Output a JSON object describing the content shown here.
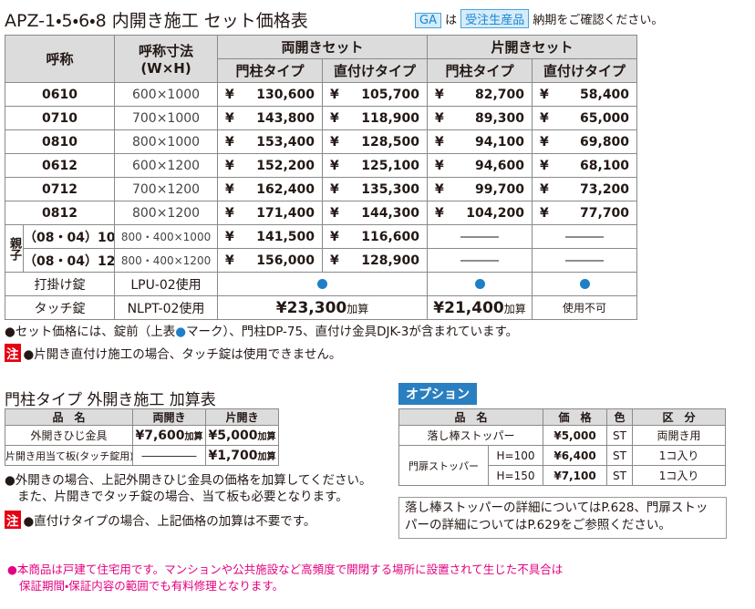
{
  "header": {
    "title": "APZ-1・5・6・8 内開き施工 セット価格表",
    "badge_ga": "GA",
    "text_ha": "は",
    "badge_order": "受注生産品",
    "text_note": "納期をご確認ください。"
  },
  "main_table": {
    "col_name": "呼称",
    "col_size": [
      "呼称寸法",
      "(W×H)"
    ],
    "group_double": "両開きセット",
    "group_single": "片開きセット",
    "sub_headers": [
      "門柱タイプ",
      "直付けタイプ",
      "門柱タイプ",
      "直付けタイプ"
    ],
    "currency": "¥",
    "rows": [
      {
        "name": "0610",
        "size": "600×1000",
        "prices": [
          "130,600",
          "105,700",
          "82,700",
          "58,400"
        ]
      },
      {
        "name": "0710",
        "size": "700×1000",
        "prices": [
          "143,800",
          "118,900",
          "89,300",
          "65,000"
        ]
      },
      {
        "name": "0810",
        "size": "800×1000",
        "prices": [
          "153,400",
          "128,500",
          "94,100",
          "69,800"
        ]
      },
      {
        "name": "0612",
        "size": "600×1200",
        "prices": [
          "152,200",
          "125,100",
          "94,600",
          "68,100"
        ]
      },
      {
        "name": "0712",
        "size": "700×1200",
        "prices": [
          "162,400",
          "135,300",
          "99,700",
          "73,200"
        ]
      },
      {
        "name": "0812",
        "size": "800×1200",
        "prices": [
          "171,400",
          "144,300",
          "104,200",
          "77,700"
        ]
      }
    ],
    "oyako": {
      "label": "親子",
      "rows": [
        {
          "name": "（08・04）10",
          "size": "800・400×1000",
          "prices": [
            "141,500",
            "116,600"
          ],
          "single": [
            "―――",
            "―――"
          ]
        },
        {
          "name": "（08・04）12",
          "size": "800・400×1200",
          "prices": [
            "156,000",
            "128,900"
          ],
          "single": [
            "―――",
            "―――"
          ]
        }
      ]
    },
    "lock": {
      "name": "打掛け錠",
      "model": "LPU-02使用"
    },
    "touch": {
      "name": "タッチ錠",
      "model": "NLPT-02使用",
      "double_price": "¥23,300",
      "double_suffix": "加算",
      "single_price": "¥21,400",
      "single_suffix": "加算",
      "single_door": "使用不可"
    }
  },
  "notes": {
    "note1": [
      "●セット価格には、錠前（上表",
      "●",
      "マーク）、門柱DP-75、直付け金具DJK-3が含まれています。"
    ],
    "caution_badge": "注",
    "note2": "●片開き直付け施工の場合、タッチ錠は使用できません。"
  },
  "outswing": {
    "title": "門柱タイプ 外開き施工 加算表",
    "headers": [
      "品　名",
      "両開き",
      "片開き"
    ],
    "rows": [
      {
        "name": "外開きひじ金具",
        "double_price": "¥7,600",
        "double_suffix": "加算",
        "single_price": "¥5,000",
        "single_suffix": "加算"
      },
      {
        "name": "片開き用当て板(タッチ錠用)",
        "double": "―――――",
        "single_price": "¥1,700",
        "single_suffix": "加算"
      }
    ],
    "notes": [
      "●外開きの場合、上記外開きひじ金具の価格を加算してください。",
      "また、片開きでタッチ錠の場合、当て板も必要となります。"
    ],
    "caution_badge": "注",
    "caution": "●直付けタイプの場合、上記価格の加算は不要です。"
  },
  "option": {
    "badge": "オプション",
    "headers": [
      "品　名",
      "価　格",
      "色",
      "区　分"
    ],
    "row1": {
      "name": "落し棒ストッパー",
      "price": "¥5,000",
      "color": "ST",
      "kind": "両開き用"
    },
    "stopper": {
      "name": "門扉ストッパー",
      "rows": [
        {
          "h": "H=100",
          "price": "¥6,400",
          "color": "ST",
          "kind": "1コ入り"
        },
        {
          "h": "H=150",
          "price": "¥7,100",
          "color": "ST",
          "kind": "1コ入り"
        }
      ]
    },
    "note": [
      "落し棒ストッパーの詳細についてはP.628、門扉ストッ",
      "パーの詳細についてはP.629をご参照ください。"
    ]
  },
  "footer": [
    "●本商品は戸建て住宅用です。マンションや公共施設など高頻度で開閉する場所に設置されて生じた不具合は",
    "保証期間・保証内容の範囲でも有料修理となります。"
  ]
}
